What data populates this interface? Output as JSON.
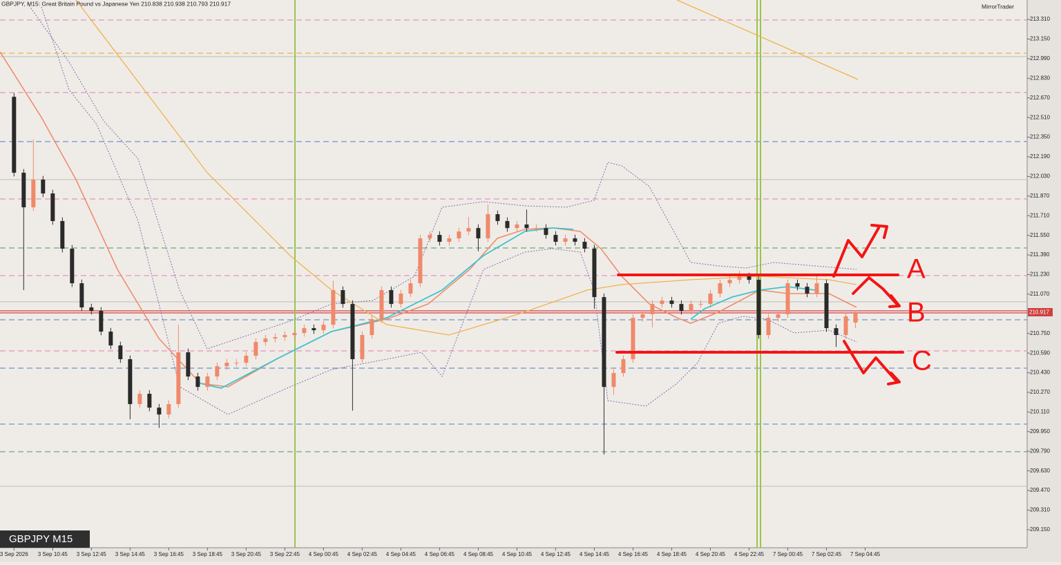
{
  "chart_data": {
    "type": "candlestick",
    "title": "GBPJPY, M15:  Great Britain Pound vs Japanese Yen  210.838 210.938 210.793 210.917",
    "brand": "MirrorTrader",
    "symbol_label": "GBPJPY M15",
    "annotations": [
      "A",
      "B",
      "C"
    ],
    "up_color": "#f0896a",
    "down_color": "#2a2a2a",
    "xlim": [
      -2.9,
      209.5
    ],
    "ylim": [
      209.003,
      213.468
    ],
    "xticks": [
      {
        "value": 0,
        "label": "3 Sep 2026"
      },
      {
        "value": 8,
        "label": "3 Sep 10:45"
      },
      {
        "value": 16,
        "label": "3 Sep 12:45"
      },
      {
        "value": 24,
        "label": "3 Sep 14:45"
      },
      {
        "value": 32,
        "label": "3 Sep 16:45"
      },
      {
        "value": 40,
        "label": "3 Sep 18:45"
      },
      {
        "value": 48,
        "label": "3 Sep 20:45"
      },
      {
        "value": 56,
        "label": "3 Sep 22:45"
      },
      {
        "value": 64,
        "label": "4 Sep 00:45"
      },
      {
        "value": 72,
        "label": "4 Sep 02:45"
      },
      {
        "value": 80,
        "label": "4 Sep 04:45"
      },
      {
        "value": 88,
        "label": "4 Sep 06:45"
      },
      {
        "value": 96,
        "label": "4 Sep 08:45"
      },
      {
        "value": 104,
        "label": "4 Sep 10:45"
      },
      {
        "value": 112,
        "label": "4 Sep 12:45"
      },
      {
        "value": 120,
        "label": "4 Sep 14:45"
      },
      {
        "value": 128,
        "label": "4 Sep 16:45"
      },
      {
        "value": 136,
        "label": "4 Sep 18:45"
      },
      {
        "value": 144,
        "label": "4 Sep 20:45"
      },
      {
        "value": 152,
        "label": "4 Sep 22:45"
      },
      {
        "value": 160,
        "label": "7 Sep 00:45"
      },
      {
        "value": 168,
        "label": "7 Sep 02:45"
      },
      {
        "value": 176,
        "label": "7 Sep 04:45"
      }
    ],
    "yticks": [
      {
        "value": 213.31,
        "label": "213.310"
      },
      {
        "value": 213.15,
        "label": "213.150"
      },
      {
        "value": 212.99,
        "label": "212.990"
      },
      {
        "value": 212.83,
        "label": "212.830"
      },
      {
        "value": 212.67,
        "label": "212.670"
      },
      {
        "value": 212.51,
        "label": "212.510"
      },
      {
        "value": 212.35,
        "label": "212.350"
      },
      {
        "value": 212.19,
        "label": "212.190"
      },
      {
        "value": 212.03,
        "label": "212.030"
      },
      {
        "value": 211.87,
        "label": "211.870"
      },
      {
        "value": 211.71,
        "label": "211.710"
      },
      {
        "value": 211.55,
        "label": "211.550"
      },
      {
        "value": 211.39,
        "label": "211.390"
      },
      {
        "value": 211.23,
        "label": "211.230"
      },
      {
        "value": 211.07,
        "label": "211.070"
      },
      {
        "value": 210.75,
        "label": "210.750"
      },
      {
        "value": 210.59,
        "label": "210.590"
      },
      {
        "value": 210.43,
        "label": "210.430"
      },
      {
        "value": 210.27,
        "label": "210.270"
      },
      {
        "value": 210.11,
        "label": "210.110"
      },
      {
        "value": 209.95,
        "label": "209.950"
      },
      {
        "value": 209.79,
        "label": "209.790"
      },
      {
        "value": 209.63,
        "label": "209.630"
      },
      {
        "value": 209.47,
        "label": "209.470"
      },
      {
        "value": 209.31,
        "label": "209.310"
      },
      {
        "value": 209.15,
        "label": "209.150"
      }
    ],
    "x": [
      0,
      2,
      4,
      6,
      8,
      10,
      12,
      14,
      16,
      18,
      20,
      22,
      24,
      26,
      28,
      30,
      32,
      34,
      36,
      38,
      40,
      42,
      44,
      46,
      48,
      50,
      52,
      54,
      56,
      58,
      60,
      62,
      64,
      66,
      68,
      70,
      72,
      74,
      76,
      78,
      80,
      82,
      84,
      86,
      88,
      90,
      92,
      94,
      96,
      98,
      100,
      102,
      104,
      106,
      108,
      110,
      112,
      114,
      116,
      118,
      120,
      122,
      124,
      126,
      128,
      130,
      132,
      134,
      136,
      138,
      140,
      142,
      144,
      146,
      148,
      150,
      152,
      154,
      156,
      158,
      160,
      162,
      164,
      166,
      168,
      170,
      172,
      174
    ],
    "ohlc": [
      [
        212.679,
        212.709,
        212.03,
        212.06
      ],
      [
        212.06,
        212.09,
        211.103,
        211.778
      ],
      [
        211.778,
        212.33,
        211.748,
        212.004
      ],
      [
        212.004,
        212.034,
        211.861,
        211.891
      ],
      [
        211.891,
        211.921,
        211.636,
        211.666
      ],
      [
        211.666,
        211.696,
        211.411,
        211.441
      ],
      [
        211.441,
        211.471,
        211.129,
        211.159
      ],
      [
        211.159,
        211.189,
        210.932,
        210.962
      ],
      [
        210.962,
        210.992,
        210.904,
        210.934
      ],
      [
        210.934,
        210.964,
        210.735,
        210.765
      ],
      [
        210.765,
        210.795,
        210.622,
        210.652
      ],
      [
        210.652,
        210.682,
        210.51,
        210.54
      ],
      [
        210.54,
        210.57,
        210.05,
        210.174
      ],
      [
        210.174,
        210.288,
        210.144,
        210.258
      ],
      [
        210.258,
        210.288,
        210.115,
        210.145
      ],
      [
        210.145,
        210.175,
        209.98,
        210.089
      ],
      [
        210.089,
        210.204,
        210.059,
        210.174
      ],
      [
        210.174,
        210.82,
        210.144,
        210.596
      ],
      [
        210.596,
        210.626,
        210.369,
        210.399
      ],
      [
        210.399,
        210.429,
        210.284,
        210.314
      ],
      [
        210.314,
        210.429,
        210.284,
        210.399
      ],
      [
        210.399,
        210.513,
        210.369,
        210.483
      ],
      [
        210.483,
        210.541,
        210.453,
        210.511
      ],
      [
        210.511,
        210.541,
        210.481,
        210.511
      ],
      [
        210.511,
        210.598,
        210.481,
        210.568
      ],
      [
        210.568,
        210.71,
        210.538,
        210.68
      ],
      [
        210.68,
        210.738,
        210.65,
        210.708
      ],
      [
        210.708,
        210.75,
        210.678,
        210.72
      ],
      [
        210.72,
        210.767,
        210.69,
        210.737
      ],
      [
        210.737,
        210.784,
        210.707,
        210.754
      ],
      [
        210.754,
        210.823,
        210.724,
        210.793
      ],
      [
        210.793,
        210.823,
        210.746,
        210.776
      ],
      [
        210.776,
        210.851,
        210.746,
        210.821
      ],
      [
        210.821,
        211.18,
        210.791,
        211.103
      ],
      [
        211.103,
        211.133,
        210.96,
        210.99
      ],
      [
        210.99,
        211.02,
        210.12,
        210.54
      ],
      [
        210.54,
        210.767,
        210.51,
        210.737
      ],
      [
        210.737,
        210.896,
        210.707,
        210.866
      ],
      [
        210.866,
        211.133,
        210.836,
        211.103
      ],
      [
        211.103,
        211.133,
        210.96,
        210.99
      ],
      [
        210.99,
        211.105,
        210.96,
        211.075
      ],
      [
        211.075,
        211.189,
        211.045,
        211.159
      ],
      [
        211.159,
        211.555,
        211.129,
        211.525
      ],
      [
        211.525,
        211.583,
        211.495,
        211.553
      ],
      [
        211.553,
        211.583,
        211.467,
        211.497
      ],
      [
        211.497,
        211.555,
        211.467,
        211.525
      ],
      [
        211.525,
        211.611,
        211.495,
        211.581
      ],
      [
        211.581,
        211.7,
        211.551,
        211.609
      ],
      [
        211.609,
        211.639,
        211.42,
        211.525
      ],
      [
        211.525,
        211.8,
        211.495,
        211.722
      ],
      [
        211.722,
        211.752,
        211.636,
        211.666
      ],
      [
        211.666,
        211.696,
        211.579,
        211.609
      ],
      [
        211.609,
        211.668,
        211.579,
        211.638
      ],
      [
        211.638,
        211.76,
        211.579,
        211.609
      ],
      [
        211.609,
        211.639,
        211.579,
        211.609
      ],
      [
        211.609,
        211.639,
        211.523,
        211.553
      ],
      [
        211.553,
        211.583,
        211.467,
        211.497
      ],
      [
        211.497,
        211.555,
        211.467,
        211.525
      ],
      [
        211.525,
        211.555,
        211.467,
        211.497
      ],
      [
        211.497,
        211.527,
        211.411,
        211.441
      ],
      [
        211.441,
        211.471,
        210.95,
        211.046
      ],
      [
        211.046,
        211.076,
        209.763,
        210.314
      ],
      [
        210.314,
        210.457,
        210.25,
        210.427
      ],
      [
        210.427,
        210.57,
        210.397,
        210.54
      ],
      [
        210.54,
        210.907,
        210.51,
        210.877
      ],
      [
        210.877,
        210.936,
        210.847,
        210.906
      ],
      [
        210.906,
        211.02,
        210.8,
        210.99
      ],
      [
        210.99,
        211.048,
        210.96,
        211.018
      ],
      [
        211.018,
        211.048,
        210.96,
        210.99
      ],
      [
        210.99,
        211.02,
        210.904,
        210.934
      ],
      [
        210.934,
        211.02,
        210.904,
        210.99
      ],
      [
        210.99,
        211.02,
        210.96,
        210.99
      ],
      [
        210.99,
        211.105,
        210.96,
        211.075
      ],
      [
        211.075,
        211.189,
        211.045,
        211.159
      ],
      [
        211.159,
        211.217,
        211.129,
        211.187
      ],
      [
        211.187,
        211.26,
        211.157,
        211.215
      ],
      [
        211.215,
        211.245,
        211.157,
        211.187
      ],
      [
        211.187,
        211.217,
        210.707,
        210.737
      ],
      [
        210.737,
        210.907,
        210.707,
        210.877
      ],
      [
        210.877,
        210.936,
        210.847,
        210.906
      ],
      [
        210.906,
        211.189,
        210.876,
        211.159
      ],
      [
        211.159,
        211.189,
        211.101,
        211.131
      ],
      [
        211.131,
        211.161,
        211.045,
        211.075
      ],
      [
        211.075,
        211.22,
        211.045,
        211.159
      ],
      [
        211.159,
        211.189,
        210.763,
        210.793
      ],
      [
        210.793,
        210.823,
        210.64,
        210.737
      ],
      [
        210.737,
        210.919,
        210.707,
        210.889
      ],
      [
        210.838,
        210.938,
        210.793,
        210.917
      ]
    ]
  }
}
